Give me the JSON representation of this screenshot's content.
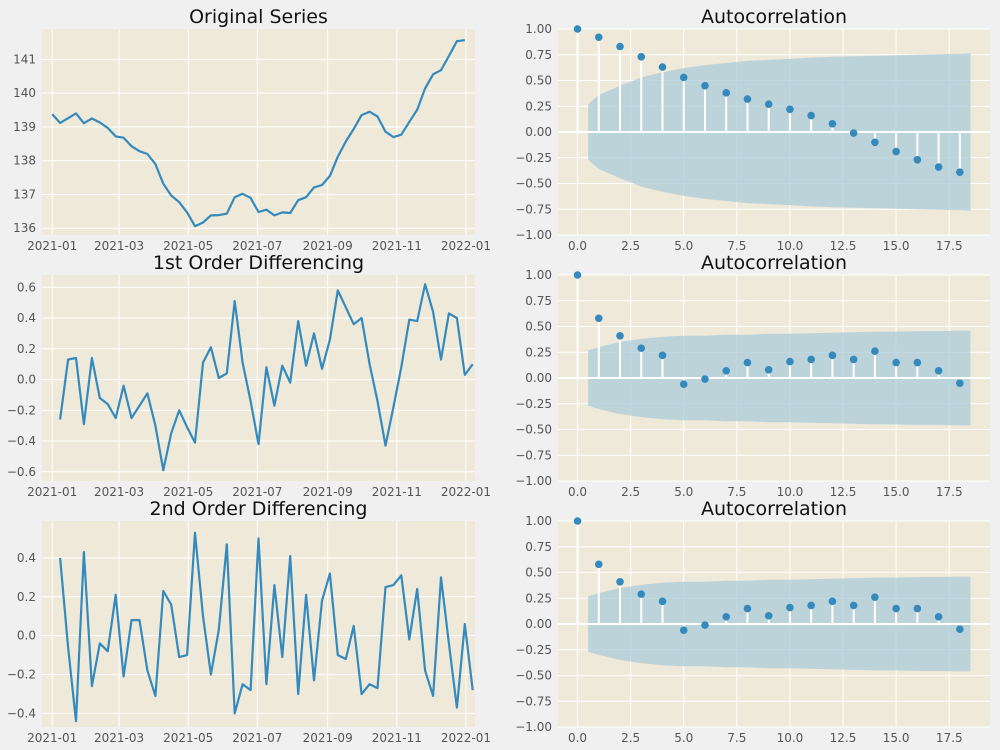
{
  "chart_data": [
    {
      "type": "line",
      "title": "Original Series",
      "x_axis": "date",
      "xlim": [
        "2020-12-23",
        "2022-01-09"
      ],
      "xticks": [
        "2021-01-01",
        "2021-03-01",
        "2021-05-01",
        "2021-07-01",
        "2021-09-01",
        "2021-11-01",
        "2022-01-01"
      ],
      "xtick_labels": [
        "2021-01",
        "2021-03",
        "2021-05",
        "2021-07",
        "2021-09",
        "2021-11",
        "2022-01"
      ],
      "ylim": [
        135.8,
        141.9
      ],
      "yticks": [
        136,
        137,
        138,
        139,
        140,
        141
      ],
      "ytick_labels": [
        "136",
        "137",
        "138",
        "139",
        "140",
        "141"
      ],
      "grid": true,
      "color": "#348abd",
      "x": [
        "2021-01-01",
        "2021-01-08",
        "2021-01-15",
        "2021-01-22",
        "2021-01-29",
        "2021-02-05",
        "2021-02-12",
        "2021-02-19",
        "2021-02-26",
        "2021-03-05",
        "2021-03-12",
        "2021-03-19",
        "2021-03-26",
        "2021-04-02",
        "2021-04-09",
        "2021-04-16",
        "2021-04-23",
        "2021-04-30",
        "2021-05-07",
        "2021-05-14",
        "2021-05-21",
        "2021-05-28",
        "2021-06-04",
        "2021-06-11",
        "2021-06-18",
        "2021-06-25",
        "2021-07-02",
        "2021-07-09",
        "2021-07-16",
        "2021-07-23",
        "2021-07-30",
        "2021-08-06",
        "2021-08-13",
        "2021-08-20",
        "2021-08-27",
        "2021-09-03",
        "2021-09-10",
        "2021-09-17",
        "2021-09-24",
        "2021-10-01",
        "2021-10-08",
        "2021-10-15",
        "2021-10-22",
        "2021-10-29",
        "2021-11-05",
        "2021-11-12",
        "2021-11-19",
        "2021-11-26",
        "2021-12-03",
        "2021-12-10",
        "2021-12-17",
        "2021-12-24",
        "2021-12-31"
      ],
      "y": [
        139.38,
        139.12,
        139.26,
        139.4,
        139.11,
        139.25,
        139.13,
        138.97,
        138.72,
        138.68,
        138.43,
        138.28,
        138.2,
        137.9,
        137.32,
        136.97,
        136.77,
        136.47,
        136.06,
        136.17,
        136.38,
        136.39,
        136.43,
        136.92,
        137.02,
        136.9,
        136.48,
        136.55,
        136.38,
        136.47,
        136.45,
        136.83,
        136.92,
        137.21,
        137.28,
        137.55,
        138.12,
        138.57,
        138.94,
        139.35,
        139.45,
        139.31,
        138.86,
        138.7,
        138.77,
        139.15,
        139.51,
        140.14,
        140.56,
        140.68,
        141.1,
        141.54,
        141.57
      ]
    },
    {
      "type": "bar",
      "title": "Autocorrelation",
      "xlim": [
        -0.92,
        19.42
      ],
      "xticks": [
        0,
        2.5,
        5,
        7.5,
        10,
        12.5,
        15,
        17.5
      ],
      "xtick_labels": [
        "0.0",
        "2.5",
        "5.0",
        "7.5",
        "10.0",
        "12.5",
        "15.0",
        "17.5"
      ],
      "ylim": [
        -1,
        1
      ],
      "yticks": [
        -1,
        -0.75,
        -0.5,
        -0.25,
        0,
        0.25,
        0.5,
        0.75,
        1
      ],
      "ytick_labels": [
        "−1.00",
        "−0.75",
        "−0.50",
        "−0.25",
        "0.00",
        "0.25",
        "0.50",
        "0.75",
        "1.00"
      ],
      "grid": true,
      "lags": [
        0,
        1,
        2,
        3,
        4,
        5,
        6,
        7,
        8,
        9,
        10,
        11,
        12,
        13,
        14,
        15,
        16,
        17,
        18
      ],
      "values": [
        1.0,
        0.92,
        0.83,
        0.73,
        0.63,
        0.53,
        0.45,
        0.38,
        0.32,
        0.27,
        0.22,
        0.16,
        0.08,
        -0.01,
        -0.1,
        -0.19,
        -0.27,
        -0.34,
        -0.39
      ],
      "confint_x": [
        0.5,
        1,
        2,
        3,
        4,
        5,
        6,
        7,
        8,
        9,
        10,
        11,
        12,
        13,
        14,
        15,
        16,
        17,
        18,
        18.5
      ],
      "confint": [
        0.27,
        0.36,
        0.45,
        0.53,
        0.58,
        0.62,
        0.65,
        0.67,
        0.69,
        0.7,
        0.71,
        0.72,
        0.73,
        0.735,
        0.74,
        0.745,
        0.75,
        0.755,
        0.76,
        0.765
      ],
      "band_color": "#a7cad9",
      "color": "#348abd"
    },
    {
      "type": "line",
      "title": "1st Order Differencing",
      "x_axis": "date",
      "xlim": [
        "2020-12-23",
        "2022-01-09"
      ],
      "xticks": [
        "2021-01-01",
        "2021-03-01",
        "2021-05-01",
        "2021-07-01",
        "2021-09-01",
        "2021-11-01",
        "2022-01-01"
      ],
      "xtick_labels": [
        "2021-01",
        "2021-03",
        "2021-05",
        "2021-07",
        "2021-09",
        "2021-11",
        "2022-01"
      ],
      "ylim": [
        -0.66,
        0.68
      ],
      "yticks": [
        -0.6,
        -0.4,
        -0.2,
        0,
        0.2,
        0.4,
        0.6
      ],
      "ytick_labels": [
        "−0.6",
        "−0.4",
        "−0.2",
        "0.0",
        "0.2",
        "0.4",
        "0.6"
      ],
      "grid": true,
      "color": "#348abd",
      "x": [
        "2021-01-08",
        "2021-01-15",
        "2021-01-22",
        "2021-01-29",
        "2021-02-05",
        "2021-02-12",
        "2021-02-19",
        "2021-02-26",
        "2021-03-05",
        "2021-03-12",
        "2021-03-19",
        "2021-03-26",
        "2021-04-02",
        "2021-04-09",
        "2021-04-16",
        "2021-04-23",
        "2021-04-30",
        "2021-05-07",
        "2021-05-14",
        "2021-05-21",
        "2021-05-28",
        "2021-06-04",
        "2021-06-11",
        "2021-06-18",
        "2021-06-25",
        "2021-07-02",
        "2021-07-09",
        "2021-07-16",
        "2021-07-23",
        "2021-07-30",
        "2021-08-06",
        "2021-08-13",
        "2021-08-20",
        "2021-08-27",
        "2021-09-03",
        "2021-09-10",
        "2021-09-17",
        "2021-09-24",
        "2021-10-01",
        "2021-10-08",
        "2021-10-15",
        "2021-10-22",
        "2021-10-29",
        "2021-11-05",
        "2021-11-12",
        "2021-11-19",
        "2021-11-26",
        "2021-12-03",
        "2021-12-10",
        "2021-12-17",
        "2021-12-24",
        "2021-12-31",
        "2022-01-07"
      ],
      "y": [
        -0.26,
        0.13,
        0.14,
        -0.29,
        0.14,
        -0.12,
        -0.16,
        -0.25,
        -0.04,
        -0.25,
        -0.17,
        -0.09,
        -0.3,
        -0.59,
        -0.35,
        -0.2,
        -0.31,
        -0.41,
        0.11,
        0.21,
        0.01,
        0.04,
        0.51,
        0.11,
        -0.14,
        -0.42,
        0.08,
        -0.17,
        0.09,
        -0.02,
        0.38,
        0.09,
        0.3,
        0.07,
        0.26,
        0.58,
        0.47,
        0.36,
        0.4,
        0.1,
        -0.14,
        -0.43,
        -0.18,
        0.08,
        0.39,
        0.38,
        0.62,
        0.44,
        0.13,
        0.43,
        0.4,
        0.03,
        0.1
      ]
    },
    {
      "type": "bar",
      "title": "Autocorrelation",
      "xlim": [
        -0.92,
        19.42
      ],
      "xticks": [
        0,
        2.5,
        5,
        7.5,
        10,
        12.5,
        15,
        17.5
      ],
      "xtick_labels": [
        "0.0",
        "2.5",
        "5.0",
        "7.5",
        "10.0",
        "12.5",
        "15.0",
        "17.5"
      ],
      "ylim": [
        -1,
        1
      ],
      "yticks": [
        -1,
        -0.75,
        -0.5,
        -0.25,
        0,
        0.25,
        0.5,
        0.75,
        1
      ],
      "ytick_labels": [
        "−1.00",
        "−0.75",
        "−0.50",
        "−0.25",
        "0.00",
        "0.25",
        "0.50",
        "0.75",
        "1.00"
      ],
      "grid": true,
      "lags": [
        0,
        1,
        2,
        3,
        4,
        5,
        6,
        7,
        8,
        9,
        10,
        11,
        12,
        13,
        14,
        15,
        16,
        17,
        18
      ],
      "values": [
        1.0,
        0.58,
        0.41,
        0.29,
        0.22,
        -0.06,
        -0.01,
        0.07,
        0.15,
        0.08,
        0.16,
        0.18,
        0.22,
        0.18,
        0.26,
        0.15,
        0.15,
        0.07,
        -0.05
      ],
      "confint_x": [
        0.5,
        1,
        2,
        3,
        4,
        5,
        6,
        7,
        8,
        9,
        10,
        11,
        12,
        13,
        14,
        15,
        16,
        17,
        18,
        18.5
      ],
      "confint": [
        0.27,
        0.3,
        0.35,
        0.38,
        0.4,
        0.41,
        0.41,
        0.42,
        0.42,
        0.43,
        0.43,
        0.435,
        0.44,
        0.445,
        0.45,
        0.45,
        0.455,
        0.455,
        0.46,
        0.46
      ],
      "band_color": "#a7cad9",
      "color": "#348abd"
    },
    {
      "type": "line",
      "title": "2nd Order Differencing",
      "x_axis": "date",
      "xlim": [
        "2020-12-23",
        "2022-01-09"
      ],
      "xticks": [
        "2021-01-01",
        "2021-03-01",
        "2021-05-01",
        "2021-07-01",
        "2021-09-01",
        "2021-11-01",
        "2022-01-01"
      ],
      "xtick_labels": [
        "2021-01",
        "2021-03",
        "2021-05",
        "2021-07",
        "2021-09",
        "2021-11",
        "2022-01"
      ],
      "ylim": [
        -0.47,
        0.59
      ],
      "yticks": [
        -0.4,
        -0.2,
        0,
        0.2,
        0.4
      ],
      "ytick_labels": [
        "−0.4",
        "−0.2",
        "0.0",
        "0.2",
        "0.4"
      ],
      "grid": true,
      "color": "#348abd",
      "x": [
        "2021-01-08",
        "2021-01-15",
        "2021-01-22",
        "2021-01-29",
        "2021-02-05",
        "2021-02-12",
        "2021-02-19",
        "2021-02-26",
        "2021-03-05",
        "2021-03-12",
        "2021-03-19",
        "2021-03-26",
        "2021-04-02",
        "2021-04-09",
        "2021-04-16",
        "2021-04-23",
        "2021-04-30",
        "2021-05-07",
        "2021-05-14",
        "2021-05-21",
        "2021-05-28",
        "2021-06-04",
        "2021-06-11",
        "2021-06-18",
        "2021-06-25",
        "2021-07-02",
        "2021-07-09",
        "2021-07-16",
        "2021-07-23",
        "2021-07-30",
        "2021-08-06",
        "2021-08-13",
        "2021-08-20",
        "2021-08-27",
        "2021-09-03",
        "2021-09-10",
        "2021-09-17",
        "2021-09-24",
        "2021-10-01",
        "2021-10-08",
        "2021-10-15",
        "2021-10-22",
        "2021-10-29",
        "2021-11-05",
        "2021-11-12",
        "2021-11-19",
        "2021-11-26",
        "2021-12-03",
        "2021-12-10",
        "2021-12-17",
        "2021-12-24",
        "2021-12-31",
        "2022-01-07"
      ],
      "y": [
        0.4,
        -0.06,
        -0.44,
        0.43,
        -0.26,
        -0.04,
        -0.08,
        0.21,
        -0.21,
        0.08,
        0.08,
        -0.18,
        -0.31,
        0.23,
        0.16,
        -0.11,
        -0.1,
        0.53,
        0.1,
        -0.2,
        0.03,
        0.47,
        -0.4,
        -0.25,
        -0.28,
        0.5,
        -0.25,
        0.26,
        -0.11,
        0.41,
        -0.3,
        0.21,
        -0.23,
        0.18,
        0.32,
        -0.1,
        -0.12,
        0.05,
        -0.3,
        -0.25,
        -0.27,
        0.25,
        0.26,
        0.31,
        -0.02,
        0.24,
        -0.18,
        -0.31,
        0.3,
        -0.04,
        -0.37,
        0.06,
        -0.28
      ]
    },
    {
      "type": "bar",
      "title": "Autocorrelation",
      "xlim": [
        -0.92,
        19.42
      ],
      "xticks": [
        0,
        2.5,
        5,
        7.5,
        10,
        12.5,
        15,
        17.5
      ],
      "xtick_labels": [
        "0.0",
        "2.5",
        "5.0",
        "7.5",
        "10.0",
        "12.5",
        "15.0",
        "17.5"
      ],
      "ylim": [
        -1,
        1
      ],
      "yticks": [
        -1,
        -0.75,
        -0.5,
        -0.25,
        0,
        0.25,
        0.5,
        0.75,
        1
      ],
      "ytick_labels": [
        "−1.00",
        "−0.75",
        "−0.50",
        "−0.25",
        "0.00",
        "0.25",
        "0.50",
        "0.75",
        "1.00"
      ],
      "grid": true,
      "lags": [
        0,
        1,
        2,
        3,
        4,
        5,
        6,
        7,
        8,
        9,
        10,
        11,
        12,
        13,
        14,
        15,
        16,
        17,
        18
      ],
      "values": [
        1.0,
        0.58,
        0.41,
        0.29,
        0.22,
        -0.06,
        -0.01,
        0.07,
        0.15,
        0.08,
        0.16,
        0.18,
        0.22,
        0.18,
        0.26,
        0.15,
        0.15,
        0.07,
        -0.05
      ],
      "confint_x": [
        0.5,
        1,
        2,
        3,
        4,
        5,
        6,
        7,
        8,
        9,
        10,
        11,
        12,
        13,
        14,
        15,
        16,
        17,
        18,
        18.5
      ],
      "confint": [
        0.27,
        0.3,
        0.35,
        0.38,
        0.4,
        0.41,
        0.41,
        0.42,
        0.42,
        0.43,
        0.43,
        0.435,
        0.44,
        0.445,
        0.45,
        0.45,
        0.455,
        0.455,
        0.46,
        0.46
      ],
      "band_color": "#a7cad9",
      "color": "#348abd"
    }
  ]
}
